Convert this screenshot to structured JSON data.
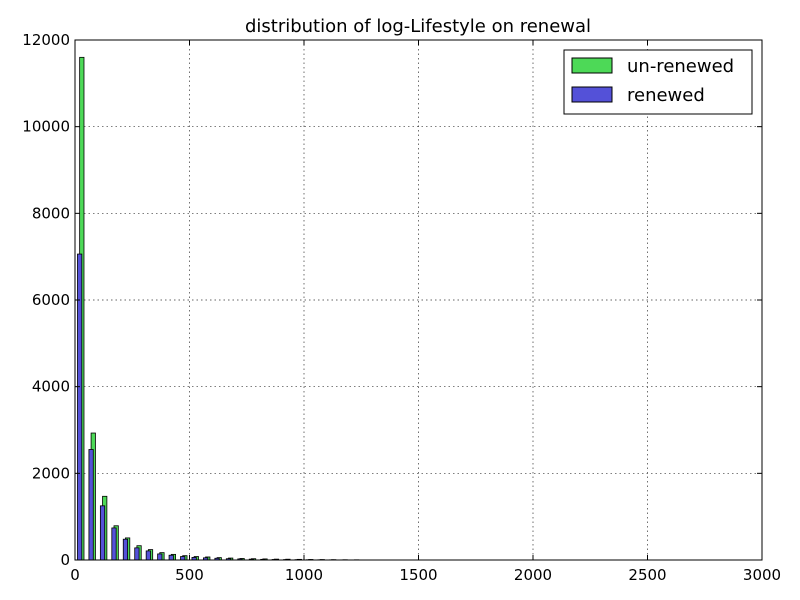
{
  "chart_data": {
    "type": "bar",
    "title": "distribution of log-Lifestyle on renewal",
    "xlabel": "",
    "ylabel": "",
    "xlim": [
      0,
      3000
    ],
    "ylim": [
      0,
      12000
    ],
    "xticks": [
      0,
      500,
      1000,
      1500,
      2000,
      2500,
      3000
    ],
    "yticks": [
      0,
      2000,
      4000,
      6000,
      8000,
      10000,
      12000
    ],
    "grid": true,
    "legend_position": "top-right",
    "bin_width": 50,
    "x": [
      25,
      75,
      125,
      175,
      225,
      275,
      325,
      375,
      425,
      475,
      525,
      575,
      625,
      675,
      725,
      775,
      825,
      875,
      925,
      975,
      1025,
      1075,
      1125,
      1175,
      1225
    ],
    "series": [
      {
        "name": "un-renewed",
        "color": "#4dd957",
        "values": [
          11600,
          2930,
          1470,
          790,
          510,
          330,
          240,
          170,
          130,
          100,
          80,
          70,
          55,
          45,
          35,
          30,
          25,
          20,
          18,
          15,
          12,
          10,
          8,
          6,
          5
        ]
      },
      {
        "name": "renewed",
        "color": "#5451d8",
        "values": [
          7060,
          2550,
          1250,
          740,
          480,
          280,
          210,
          140,
          110,
          80,
          60,
          50,
          40,
          30,
          25,
          20,
          15,
          12,
          10,
          8,
          6,
          5,
          4,
          3,
          2
        ]
      }
    ]
  }
}
